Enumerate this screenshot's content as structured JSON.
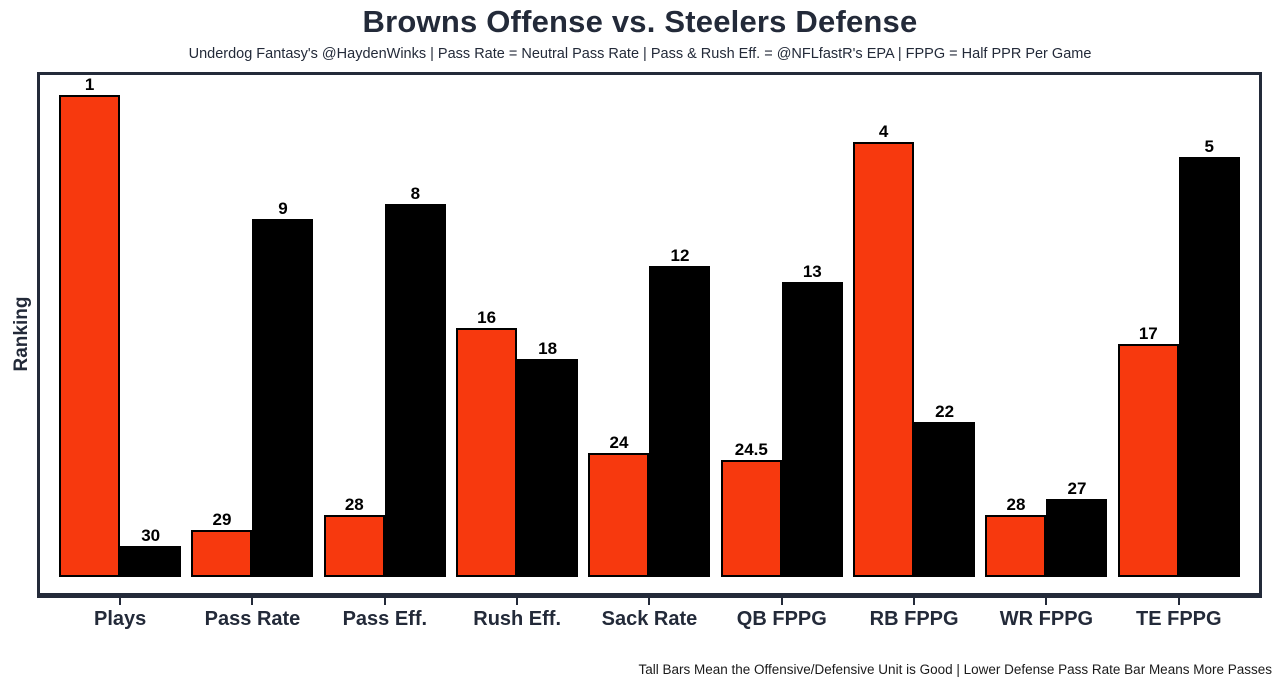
{
  "header": {
    "title": "Browns Offense vs. Steelers Defense",
    "subtitle": "Underdog Fantasy's @HaydenWinks | Pass Rate = Neutral Pass Rate | Pass & Rush Eff. = @NFLfastR's EPA | FPPG = Half PPR Per Game"
  },
  "footer": {
    "note": "Tall Bars Mean the Offensive/Defensive Unit is Good | Lower Defense Pass Rate Bar Means More Passes"
  },
  "chart_data": {
    "type": "bar",
    "title": "Browns Offense vs. Steelers Defense",
    "subtitle": "Underdog Fantasy's @HaydenWinks | Pass Rate = Neutral Pass Rate | Pass & Rush Eff. = @NFLfastR's EPA | FPPG = Half PPR Per Game",
    "xlabel": "",
    "ylabel": "Ranking",
    "categories": [
      "Plays",
      "Pass Rate",
      "Pass Eff.",
      "Rush Eff.",
      "Sack Rate",
      "QB FPPG",
      "RB FPPG",
      "WR FPPG",
      "TE FPPG"
    ],
    "series": [
      {
        "name": "Browns Offense",
        "color": "#f7390e",
        "values": [
          1,
          29,
          28,
          16,
          24,
          24.5,
          4,
          28,
          17
        ]
      },
      {
        "name": "Steelers Defense",
        "color": "#000000",
        "values": [
          30,
          9,
          8,
          18,
          12,
          13,
          22,
          27,
          5
        ]
      }
    ],
    "value_semantics": "NFL rank out of 32; rank 1 = best; taller bar = better ranking",
    "rank_range": [
      1,
      32
    ],
    "grid": false,
    "legend_position": "none",
    "footnote": "Tall Bars Mean the Offensive/Defensive Unit is Good | Lower Defense Pass Rate Bar Means More Passes"
  },
  "colors": {
    "offense_orange": "#f7390e",
    "defense_black": "#000000",
    "navy_text": "#232a39",
    "background": "#ffffff"
  }
}
